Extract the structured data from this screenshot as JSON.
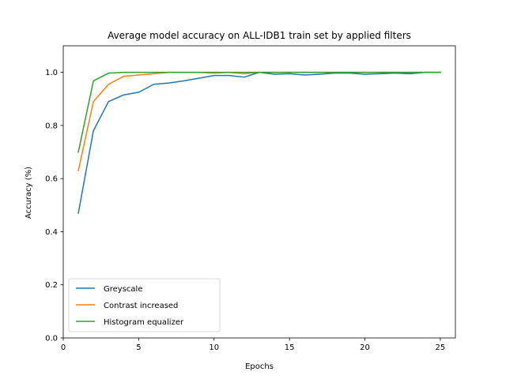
{
  "chart_data": {
    "type": "line",
    "title": "Average model accuracy on ALL-IDB1 train set by applied filters",
    "xlabel": "Epochs",
    "ylabel": "Accuracy (%)",
    "xlim": [
      0,
      26
    ],
    "ylim": [
      0,
      1.1
    ],
    "xticks": [
      0,
      5,
      10,
      15,
      20,
      25
    ],
    "yticks": [
      0.0,
      0.2,
      0.4,
      0.6,
      0.8,
      1.0
    ],
    "xtick_labels": [
      "0",
      "5",
      "10",
      "15",
      "20",
      "25"
    ],
    "ytick_labels": [
      "0.0",
      "0.2",
      "0.4",
      "0.6",
      "0.8",
      "1.0"
    ],
    "legend_position": "lower-left",
    "grid": false,
    "x": [
      1,
      2,
      3,
      4,
      5,
      6,
      7,
      8,
      9,
      10,
      11,
      12,
      13,
      14,
      15,
      16,
      17,
      18,
      19,
      20,
      21,
      22,
      23,
      24,
      25
    ],
    "series": [
      {
        "name": "Greyscale",
        "color": "#1f77b4",
        "values": [
          0.47,
          0.78,
          0.89,
          0.915,
          0.925,
          0.955,
          0.96,
          0.968,
          0.978,
          0.988,
          0.988,
          0.982,
          1.0,
          0.993,
          0.995,
          0.99,
          0.993,
          0.997,
          0.997,
          0.993,
          0.995,
          0.997,
          0.995,
          1.0,
          1.0
        ]
      },
      {
        "name": "Contrast increased",
        "color": "#ff7f0e",
        "values": [
          0.63,
          0.89,
          0.955,
          0.985,
          0.99,
          0.995,
          1.0,
          1.0,
          1.0,
          0.997,
          1.0,
          0.995,
          1.0,
          1.0,
          1.0,
          1.0,
          1.0,
          1.0,
          1.0,
          1.0,
          1.0,
          1.0,
          1.0,
          1.0,
          1.0
        ]
      },
      {
        "name": "Histogram equalizer",
        "color": "#2ca02c",
        "values": [
          0.7,
          0.968,
          0.997,
          1.0,
          1.0,
          1.0,
          1.0,
          1.0,
          1.0,
          1.0,
          1.0,
          1.0,
          1.0,
          1.0,
          1.0,
          1.0,
          1.0,
          1.0,
          1.0,
          1.0,
          1.0,
          1.0,
          1.0,
          1.0,
          1.0
        ]
      }
    ]
  }
}
